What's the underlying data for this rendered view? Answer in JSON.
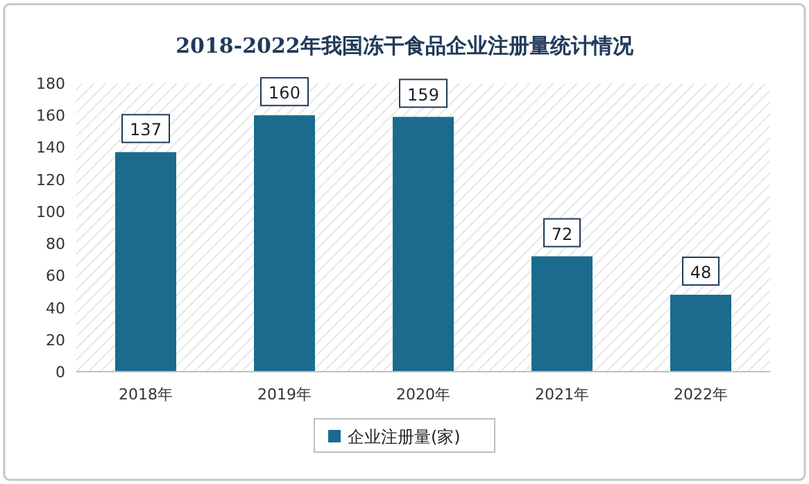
{
  "chart_data": {
    "type": "bar",
    "title": "2018-2022年我国冻干食品企业注册量统计情况",
    "categories": [
      "2018年",
      "2019年",
      "2020年",
      "2021年",
      "2022年"
    ],
    "series": [
      {
        "name": "企业注册量(家)",
        "color": "#1b6b8f",
        "values": [
          137,
          160,
          159,
          72,
          48
        ]
      }
    ],
    "ylim": [
      0,
      180
    ],
    "yticks": [
      0,
      20,
      40,
      60,
      80,
      100,
      120,
      140,
      160,
      180
    ],
    "data_labels": true,
    "legend": "bottom"
  }
}
